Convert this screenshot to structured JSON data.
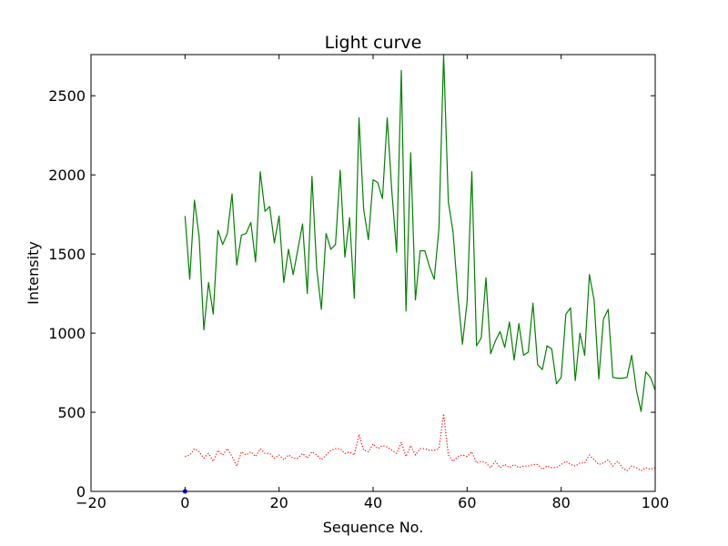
{
  "chart_data": {
    "type": "line",
    "title": "Light curve",
    "xlabel": "Sequence No.",
    "ylabel": "Intensity",
    "xlim": [
      -20,
      100
    ],
    "ylim": [
      0,
      2760
    ],
    "xticks": [
      -20,
      0,
      20,
      40,
      60,
      80,
      100
    ],
    "yticks": [
      0,
      500,
      1000,
      1500,
      2000,
      2500
    ],
    "grid": false,
    "series": [
      {
        "style": "solid",
        "color": "#008000",
        "x": [
          0,
          1,
          2,
          3,
          4,
          5,
          6,
          7,
          8,
          9,
          10,
          11,
          12,
          13,
          14,
          15,
          16,
          17,
          18,
          19,
          20,
          21,
          22,
          23,
          24,
          25,
          26,
          27,
          28,
          29,
          30,
          31,
          32,
          33,
          34,
          35,
          36,
          37,
          38,
          39,
          40,
          41,
          42,
          43,
          44,
          45,
          46,
          47,
          48,
          49,
          50,
          51,
          52,
          53,
          54,
          55,
          56,
          57,
          58,
          59,
          60,
          61,
          62,
          63,
          64,
          65,
          66,
          67,
          68,
          69,
          70,
          71,
          72,
          73,
          74,
          75,
          76,
          77,
          78,
          79,
          80,
          81,
          82,
          83,
          84,
          85,
          86,
          87,
          88,
          89,
          90,
          91,
          92,
          93,
          94,
          95,
          96,
          97,
          98,
          99,
          100
        ],
        "y": [
          1740,
          1340,
          1840,
          1610,
          1020,
          1320,
          1120,
          1650,
          1560,
          1630,
          1880,
          1430,
          1620,
          1630,
          1700,
          1450,
          2020,
          1770,
          1800,
          1570,
          1740,
          1320,
          1530,
          1370,
          1530,
          1690,
          1250,
          1990,
          1410,
          1150,
          1630,
          1530,
          1560,
          2030,
          1480,
          1730,
          1220,
          2360,
          1780,
          1590,
          1970,
          1950,
          1850,
          2360,
          1890,
          1510,
          2660,
          1140,
          2140,
          1210,
          1520,
          1520,
          1420,
          1340,
          1660,
          2760,
          1830,
          1640,
          1250,
          930,
          1200,
          2020,
          920,
          970,
          1350,
          870,
          950,
          1010,
          910,
          1070,
          830,
          1060,
          860,
          880,
          1190,
          800,
          770,
          920,
          900,
          680,
          720,
          1120,
          1160,
          700,
          1000,
          860,
          1370,
          1210,
          710,
          1090,
          1150,
          720,
          715,
          715,
          720,
          860,
          640,
          505,
          755,
          720,
          640
        ]
      },
      {
        "style": "dotted",
        "color": "#ff0000",
        "x": [
          0,
          1,
          2,
          3,
          4,
          5,
          6,
          7,
          8,
          9,
          10,
          11,
          12,
          13,
          14,
          15,
          16,
          17,
          18,
          19,
          20,
          21,
          22,
          23,
          24,
          25,
          26,
          27,
          28,
          29,
          30,
          31,
          32,
          33,
          34,
          35,
          36,
          37,
          38,
          39,
          40,
          41,
          42,
          43,
          44,
          45,
          46,
          47,
          48,
          49,
          50,
          51,
          52,
          53,
          54,
          55,
          56,
          57,
          58,
          59,
          60,
          61,
          62,
          63,
          64,
          65,
          66,
          67,
          68,
          69,
          70,
          71,
          72,
          73,
          74,
          75,
          76,
          77,
          78,
          79,
          80,
          81,
          82,
          83,
          84,
          85,
          86,
          87,
          88,
          89,
          90,
          91,
          92,
          93,
          94,
          95,
          96,
          97,
          98,
          99,
          100
        ],
        "y": [
          220,
          230,
          270,
          250,
          210,
          240,
          190,
          260,
          230,
          270,
          220,
          160,
          250,
          230,
          250,
          220,
          270,
          240,
          240,
          210,
          230,
          200,
          230,
          210,
          210,
          240,
          210,
          250,
          230,
          200,
          230,
          260,
          270,
          270,
          240,
          250,
          230,
          360,
          260,
          250,
          300,
          270,
          290,
          280,
          260,
          240,
          310,
          220,
          290,
          230,
          270,
          270,
          260,
          260,
          270,
          490,
          230,
          190,
          220,
          230,
          220,
          250,
          180,
          190,
          180,
          150,
          190,
          150,
          170,
          150,
          170,
          150,
          160,
          160,
          170,
          170,
          140,
          160,
          150,
          150,
          170,
          190,
          170,
          160,
          180,
          180,
          230,
          200,
          170,
          180,
          200,
          160,
          190,
          150,
          130,
          160,
          150,
          130,
          150,
          140,
          150
        ]
      },
      {
        "style": "solid",
        "color": "#0000ff",
        "x": [
          0
        ],
        "y": [
          0
        ]
      }
    ]
  }
}
